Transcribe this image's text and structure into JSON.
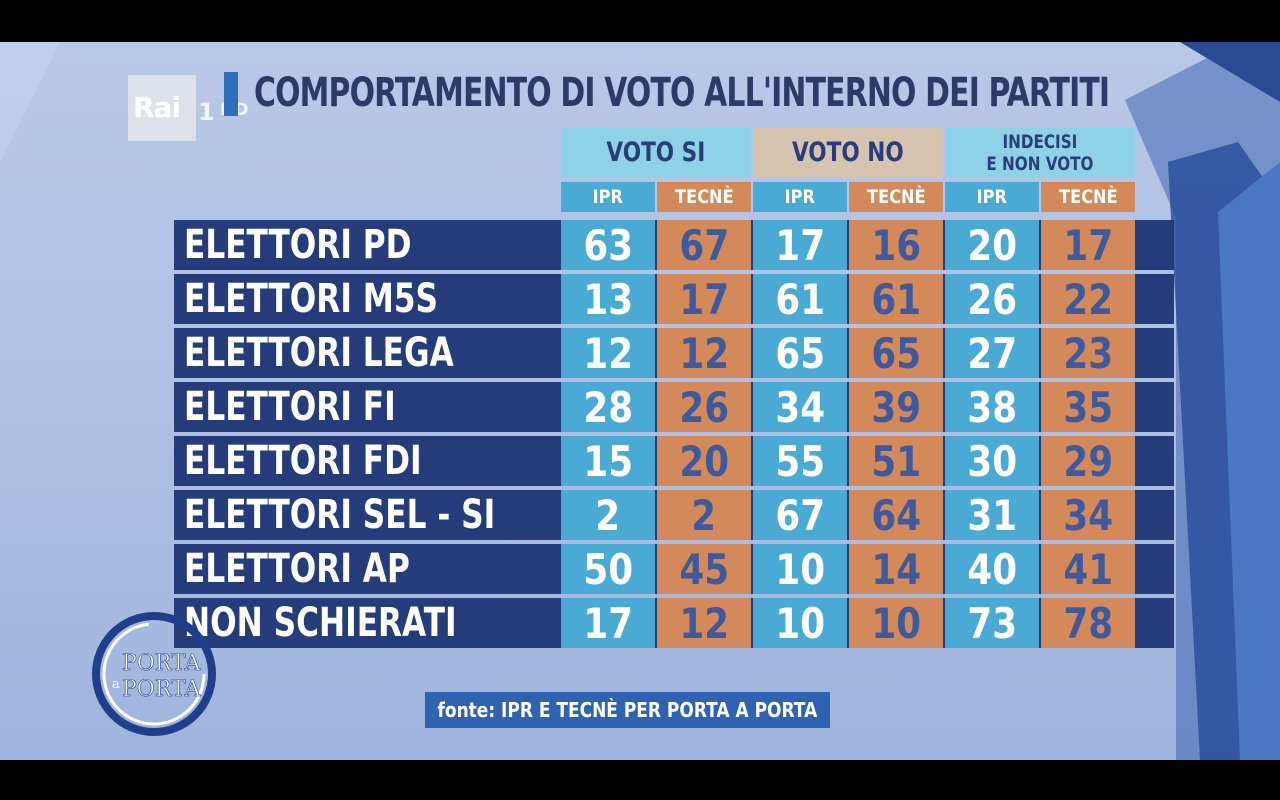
{
  "channel": {
    "brand": "Rai",
    "number": "1",
    "quality": "HD"
  },
  "program": {
    "name_line1": "PORTA",
    "name_line2": "a",
    "name_line3": "PORTA"
  },
  "title": "COMPORTAMENTO DI VOTO ALL'INTERNO DEI PARTITI",
  "groups": [
    {
      "label_line1": "VOTO SI",
      "label_line2": "",
      "color": "#8fd1e6"
    },
    {
      "label_line1": "VOTO NO",
      "label_line2": "",
      "color": "#d6c3b0"
    },
    {
      "label_line1": "INDECISI",
      "label_line2": "E NON VOTO",
      "color": "#8fd1e6"
    }
  ],
  "subheaders": [
    "IPR",
    "TECNÈ",
    "IPR",
    "TECNÈ",
    "IPR",
    "TECNÈ"
  ],
  "colors": {
    "ipr": "#4aaad4",
    "tecne": "#d3895a",
    "row_label_bg": "#263c7a",
    "source_bg": "#2f63b1"
  },
  "source": "fonte: IPR E TECNÈ PER PORTA A PORTA",
  "chart_data": {
    "type": "table",
    "title": "COMPORTAMENTO DI VOTO ALL'INTERNO DEI PARTITI",
    "columns": [
      {
        "group": "VOTO SI",
        "source": "IPR"
      },
      {
        "group": "VOTO SI",
        "source": "TECNÈ"
      },
      {
        "group": "VOTO NO",
        "source": "IPR"
      },
      {
        "group": "VOTO NO",
        "source": "TECNÈ"
      },
      {
        "group": "INDECISI E NON VOTO",
        "source": "IPR"
      },
      {
        "group": "INDECISI E NON VOTO",
        "source": "TECNÈ"
      }
    ],
    "rows": [
      {
        "label": "ELETTORI PD",
        "values": [
          "63",
          "67",
          "17",
          "16",
          "20",
          "17"
        ]
      },
      {
        "label": "ELETTORI M5S",
        "values": [
          "13",
          "17",
          "61",
          "61",
          "26",
          "22"
        ]
      },
      {
        "label": "ELETTORI LEGA",
        "values": [
          "12",
          "12",
          "65",
          "65",
          "27",
          "23"
        ]
      },
      {
        "label": "ELETTORI FI",
        "values": [
          "28",
          "26",
          "34",
          "39",
          "38",
          "35"
        ]
      },
      {
        "label": "ELETTORI FDI",
        "values": [
          "15",
          "20",
          "55",
          "51",
          "30",
          "29"
        ]
      },
      {
        "label": "ELETTORI SEL - SI",
        "values": [
          "2",
          "2",
          "67",
          "64",
          "31",
          "34"
        ]
      },
      {
        "label": "ELETTORI AP",
        "values": [
          "50",
          "45",
          "10",
          "14",
          "40",
          "41"
        ]
      },
      {
        "label": "NON SCHIERATI",
        "values": [
          "17",
          "12",
          "10",
          "10",
          "73",
          "78"
        ]
      }
    ]
  }
}
